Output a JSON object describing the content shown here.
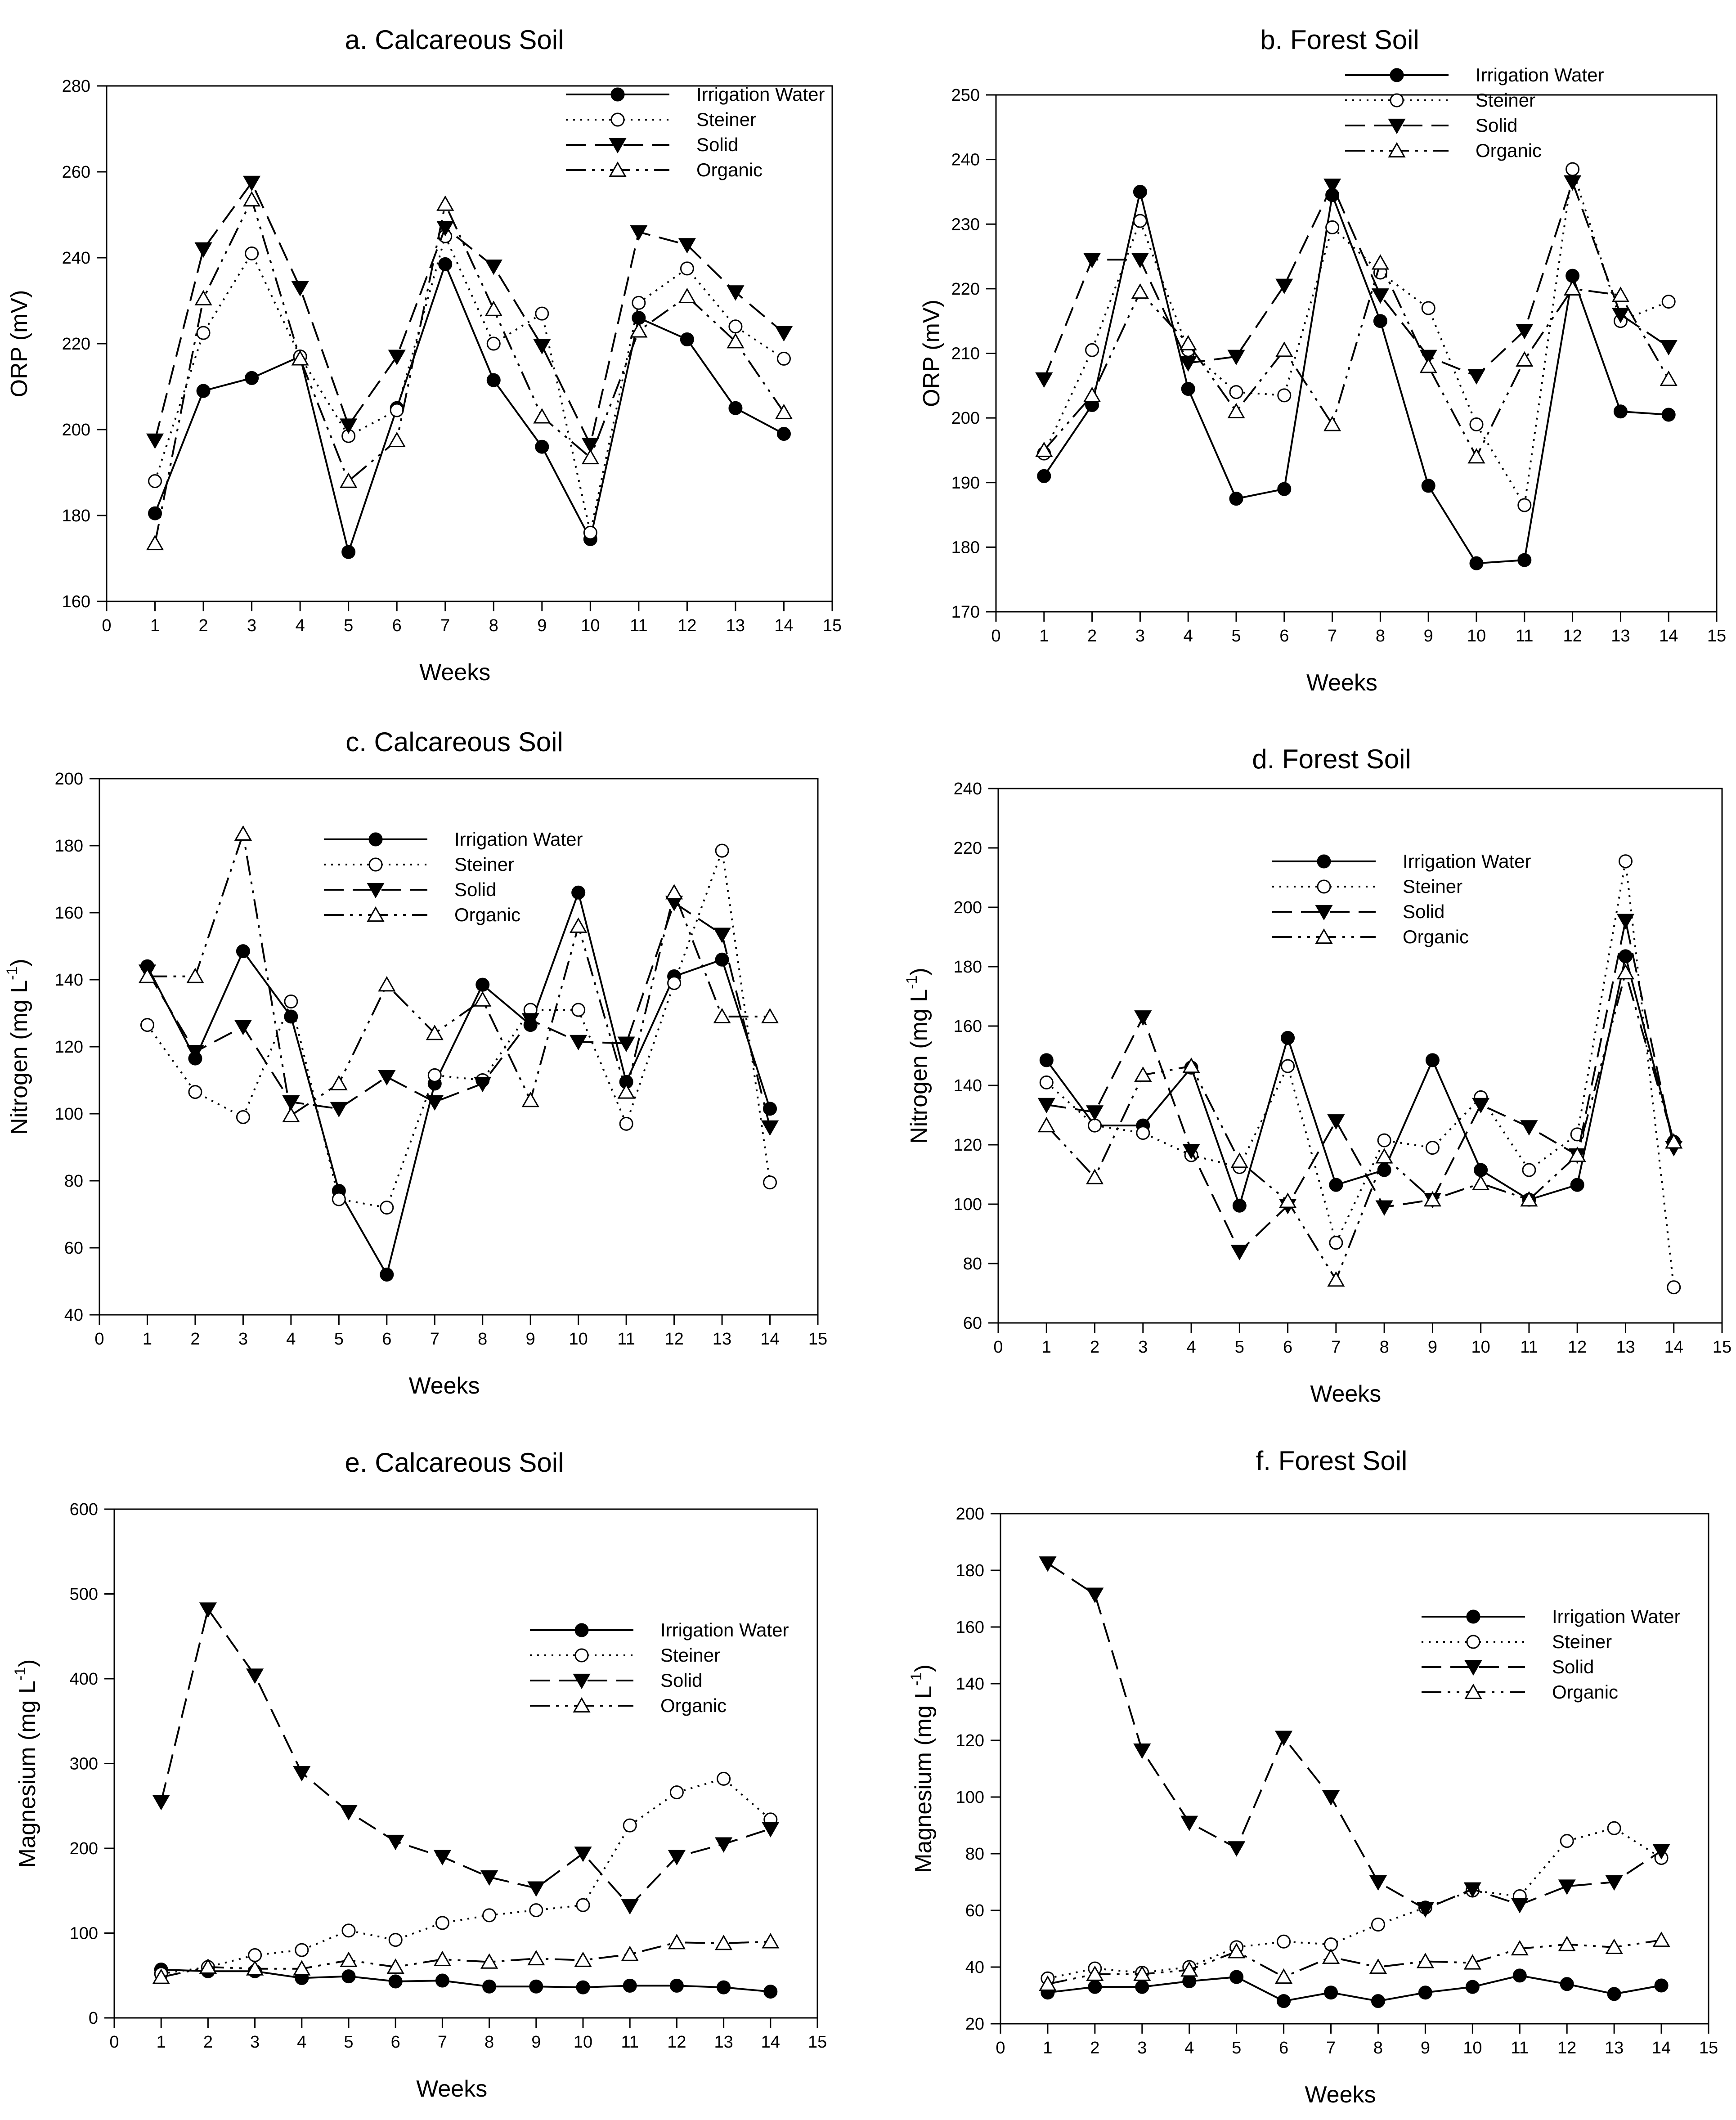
{
  "figure": {
    "x_axis_label": "Weeks",
    "legend_labels": [
      "Irrigation Water",
      "Steiner",
      "Solid",
      "Organic"
    ]
  },
  "chart_data": [
    {
      "type": "line",
      "title": "a. Calcareous Soil",
      "xlabel": "Weeks",
      "ylabel": "ORP (mV)",
      "xlim": [
        0,
        15
      ],
      "ylim": [
        160,
        280
      ],
      "xticks": [
        0,
        1,
        2,
        3,
        4,
        5,
        6,
        7,
        8,
        9,
        10,
        11,
        12,
        13,
        14,
        15
      ],
      "yticks": [
        160,
        180,
        200,
        220,
        240,
        260,
        280
      ],
      "legend_position": "top-right",
      "x": [
        1,
        2,
        3,
        4,
        5,
        6,
        7,
        8,
        9,
        10,
        11,
        12,
        13,
        14
      ],
      "series": [
        {
          "name": "Irrigation Water",
          "values": [
            180.5,
            209,
            212,
            217,
            171.5,
            205,
            238.5,
            211.5,
            196,
            174.5,
            226,
            221,
            205,
            199
          ]
        },
        {
          "name": "Steiner",
          "values": [
            188,
            222.5,
            241,
            217,
            198.5,
            204.5,
            245,
            220,
            227,
            176,
            229.5,
            237.5,
            224,
            216.5
          ]
        },
        {
          "name": "Solid",
          "values": [
            197.5,
            242,
            257.5,
            233,
            201,
            217,
            247,
            238,
            219.5,
            196.5,
            246,
            243,
            232,
            222.5
          ]
        },
        {
          "name": "Organic",
          "values": [
            173.5,
            230.5,
            253.5,
            216.5,
            188,
            197.5,
            252.5,
            228,
            203,
            193.5,
            223,
            231,
            220.5,
            204
          ]
        }
      ]
    },
    {
      "type": "line",
      "title": "b. Forest Soil",
      "xlabel": "Weeks",
      "ylabel": "ORP (mV)",
      "xlim": [
        0,
        15
      ],
      "ylim": [
        170,
        250
      ],
      "xticks": [
        0,
        1,
        2,
        3,
        4,
        5,
        6,
        7,
        8,
        9,
        10,
        11,
        12,
        13,
        14,
        15
      ],
      "yticks": [
        170,
        180,
        190,
        200,
        210,
        220,
        230,
        240,
        250
      ],
      "legend_position": "top-right",
      "x": [
        1,
        2,
        3,
        4,
        5,
        6,
        7,
        8,
        9,
        10,
        11,
        12,
        13,
        14
      ],
      "series": [
        {
          "name": "Irrigation Water",
          "values": [
            191,
            202,
            235,
            204.5,
            187.5,
            189,
            234.5,
            215,
            189.5,
            177.5,
            178,
            222,
            201,
            200.5
          ]
        },
        {
          "name": "Steiner",
          "values": [
            194.5,
            210.5,
            230.5,
            210.5,
            204,
            203.5,
            229.5,
            222.5,
            217,
            199,
            186.5,
            238.5,
            215,
            218
          ]
        },
        {
          "name": "Solid",
          "values": [
            206,
            224.5,
            224.5,
            208.5,
            209.5,
            220.5,
            236,
            219,
            209.5,
            206.5,
            213.5,
            236.5,
            216,
            211
          ]
        },
        {
          "name": "Organic",
          "values": [
            195,
            203.5,
            219.5,
            211.5,
            201,
            210.5,
            199,
            224,
            208,
            194,
            209,
            220,
            219,
            206
          ]
        }
      ]
    },
    {
      "type": "line",
      "title": "c. Calcareous Soil",
      "xlabel": "Weeks",
      "ylabel": "Nitrogen (mg L",
      "ylabel_sup": "-1",
      "ylabel_end": ")",
      "xlim": [
        0,
        15
      ],
      "ylim": [
        40,
        200
      ],
      "xticks": [
        0,
        1,
        2,
        3,
        4,
        5,
        6,
        7,
        8,
        9,
        10,
        11,
        12,
        13,
        14,
        15
      ],
      "yticks": [
        40,
        60,
        80,
        100,
        120,
        140,
        160,
        180,
        200
      ],
      "legend_position": "top-center",
      "x": [
        1,
        2,
        3,
        4,
        5,
        6,
        7,
        8,
        9,
        10,
        11,
        12,
        13,
        14
      ],
      "series": [
        {
          "name": "Irrigation Water",
          "values": [
            144,
            116.5,
            148.5,
            129,
            77,
            52,
            109,
            138.5,
            126.5,
            166,
            109.5,
            141,
            146,
            101.5
          ]
        },
        {
          "name": "Steiner",
          "values": [
            126.5,
            106.5,
            99,
            133.5,
            74.5,
            72,
            111.5,
            110,
            131,
            131,
            97,
            139,
            178.5,
            79.5
          ]
        },
        {
          "name": "Solid",
          "values": [
            142.5,
            118.5,
            126,
            103.5,
            101.5,
            111,
            103.5,
            109,
            128,
            121.5,
            121,
            163,
            153.5,
            96
          ]
        },
        {
          "name": "Organic",
          "values": [
            141,
            141,
            183.5,
            99.5,
            109,
            138.5,
            124,
            134,
            104,
            156,
            106.5,
            166,
            129,
            129
          ]
        }
      ]
    },
    {
      "type": "line",
      "title": "d. Forest Soil",
      "xlabel": "Weeks",
      "ylabel": "Nitrogen (mg L",
      "ylabel_sup": "-1",
      "ylabel_end": ")",
      "xlim": [
        0,
        15
      ],
      "ylim": [
        60,
        240
      ],
      "xticks": [
        0,
        1,
        2,
        3,
        4,
        5,
        6,
        7,
        8,
        9,
        10,
        11,
        12,
        13,
        14,
        15
      ],
      "yticks": [
        60,
        80,
        100,
        120,
        140,
        160,
        180,
        200,
        220,
        240
      ],
      "legend_position": "top-center",
      "x": [
        1,
        2,
        3,
        4,
        5,
        6,
        7,
        8,
        9,
        10,
        11,
        12,
        13,
        14
      ],
      "series": [
        {
          "name": "Irrigation Water",
          "values": [
            148.5,
            126.5,
            126.5,
            146,
            99.5,
            156,
            106.5,
            111.5,
            148.5,
            111.5,
            101.5,
            106.5,
            183.5,
            121
          ]
        },
        {
          "name": "Steiner",
          "values": [
            141,
            126.5,
            124,
            116.5,
            112.5,
            146.5,
            87,
            121.5,
            119,
            136,
            111.5,
            123.5,
            215.5,
            72
          ]
        },
        {
          "name": "Solid",
          "values": [
            133.5,
            131,
            163,
            118,
            84,
            99.5,
            128,
            99,
            101.5,
            133.5,
            126,
            116.5,
            195.5,
            119
          ]
        },
        {
          "name": "Organic",
          "values": [
            126.5,
            109,
            143.5,
            146.5,
            114.5,
            101,
            74.5,
            116,
            101.5,
            107,
            101.5,
            116.5,
            178,
            121
          ]
        }
      ]
    },
    {
      "type": "line",
      "title": "e. Calcareous Soil",
      "xlabel": "Weeks",
      "ylabel": "Magnesium (mg L",
      "ylabel_sup": "-1",
      "ylabel_end": ")",
      "xlim": [
        0,
        15
      ],
      "ylim": [
        0,
        600
      ],
      "xticks": [
        0,
        1,
        2,
        3,
        4,
        5,
        6,
        7,
        8,
        9,
        10,
        11,
        12,
        13,
        14,
        15
      ],
      "yticks": [
        0,
        100,
        200,
        300,
        400,
        500,
        600
      ],
      "legend_position": "right",
      "x": [
        1,
        2,
        3,
        4,
        5,
        6,
        7,
        8,
        9,
        10,
        11,
        12,
        13,
        14
      ],
      "series": [
        {
          "name": "Irrigation Water",
          "values": [
            57,
            55,
            55,
            47,
            49,
            43,
            44,
            37,
            37,
            36,
            38,
            38,
            36,
            31
          ]
        },
        {
          "name": "Steiner",
          "values": [
            52,
            60,
            74,
            80,
            103,
            92,
            112,
            121,
            127,
            133,
            227,
            266,
            282,
            234
          ]
        },
        {
          "name": "Solid",
          "values": [
            255,
            482,
            404,
            289,
            243,
            208,
            190,
            166,
            153,
            194,
            132,
            190,
            205,
            223
          ]
        },
        {
          "name": "Organic",
          "values": [
            48,
            60,
            58,
            58,
            68,
            60,
            69,
            66,
            70,
            68,
            75,
            89,
            88,
            90
          ]
        }
      ]
    },
    {
      "type": "line",
      "title": "f. Forest Soil",
      "xlabel": "Weeks",
      "ylabel": "Magnesium (mg L",
      "ylabel_sup": "-1",
      "ylabel_end": ")",
      "xlim": [
        0,
        15
      ],
      "ylim": [
        20,
        200
      ],
      "xticks": [
        0,
        1,
        2,
        3,
        4,
        5,
        6,
        7,
        8,
        9,
        10,
        11,
        12,
        13,
        14,
        15
      ],
      "yticks": [
        20,
        40,
        60,
        80,
        100,
        120,
        140,
        160,
        180,
        200
      ],
      "legend_position": "right",
      "x": [
        1,
        2,
        3,
        4,
        5,
        6,
        7,
        8,
        9,
        10,
        11,
        12,
        13,
        14
      ],
      "series": [
        {
          "name": "Irrigation Water",
          "values": [
            31,
            33,
            33,
            35,
            36.5,
            28,
            31,
            28,
            31,
            33,
            37,
            34,
            30.5,
            33.5
          ]
        },
        {
          "name": "Steiner",
          "values": [
            36,
            39.5,
            38,
            40,
            47,
            49,
            48,
            55,
            61,
            67,
            65,
            84.5,
            89,
            78.5
          ]
        },
        {
          "name": "Solid",
          "values": [
            182.5,
            171.5,
            116.5,
            91,
            82,
            121,
            100,
            70,
            60.5,
            67.5,
            62,
            68.5,
            70,
            81
          ]
        },
        {
          "name": "Organic",
          "values": [
            34,
            37.5,
            37.5,
            39,
            45.5,
            36.5,
            43.5,
            40,
            42,
            41.5,
            46.5,
            48,
            47,
            49.5
          ]
        }
      ]
    }
  ]
}
